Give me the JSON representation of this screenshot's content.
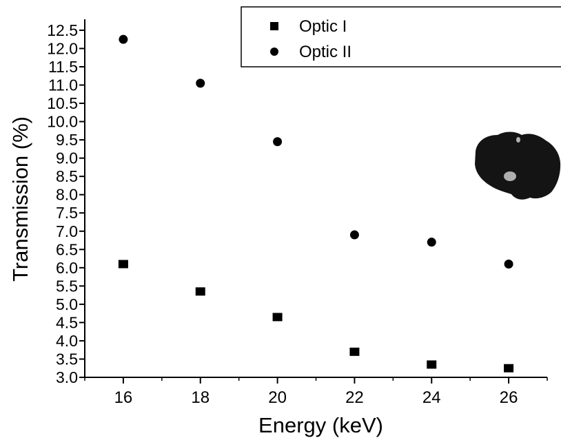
{
  "chart_data": {
    "type": "scatter",
    "xlabel": "Energy (keV)",
    "ylabel": "Transmission (%)",
    "xlim": [
      15,
      27
    ],
    "ylim": [
      3.0,
      12.8
    ],
    "x_ticks": [
      16,
      18,
      20,
      22,
      24,
      26
    ],
    "y_ticks": [
      3.0,
      3.5,
      4.0,
      4.5,
      5.0,
      5.5,
      6.0,
      6.5,
      7.0,
      7.5,
      8.0,
      8.5,
      9.0,
      9.5,
      10.0,
      10.5,
      11.0,
      11.5,
      12.0,
      12.5
    ],
    "grid": false,
    "legend_position": "top-right",
    "series": [
      {
        "name": "Optic I",
        "marker": "square",
        "color": "#000000",
        "points": [
          {
            "x": 16,
            "y": 6.1
          },
          {
            "x": 18,
            "y": 5.35
          },
          {
            "x": 20,
            "y": 4.65
          },
          {
            "x": 22,
            "y": 3.7
          },
          {
            "x": 24,
            "y": 3.35
          },
          {
            "x": 26,
            "y": 3.25
          }
        ]
      },
      {
        "name": "Optic II",
        "marker": "circle",
        "color": "#000000",
        "points": [
          {
            "x": 16,
            "y": 12.25
          },
          {
            "x": 18,
            "y": 11.05
          },
          {
            "x": 20,
            "y": 9.45
          },
          {
            "x": 22,
            "y": 6.9
          },
          {
            "x": 24,
            "y": 6.7
          },
          {
            "x": 26,
            "y": 6.1
          }
        ]
      }
    ]
  }
}
